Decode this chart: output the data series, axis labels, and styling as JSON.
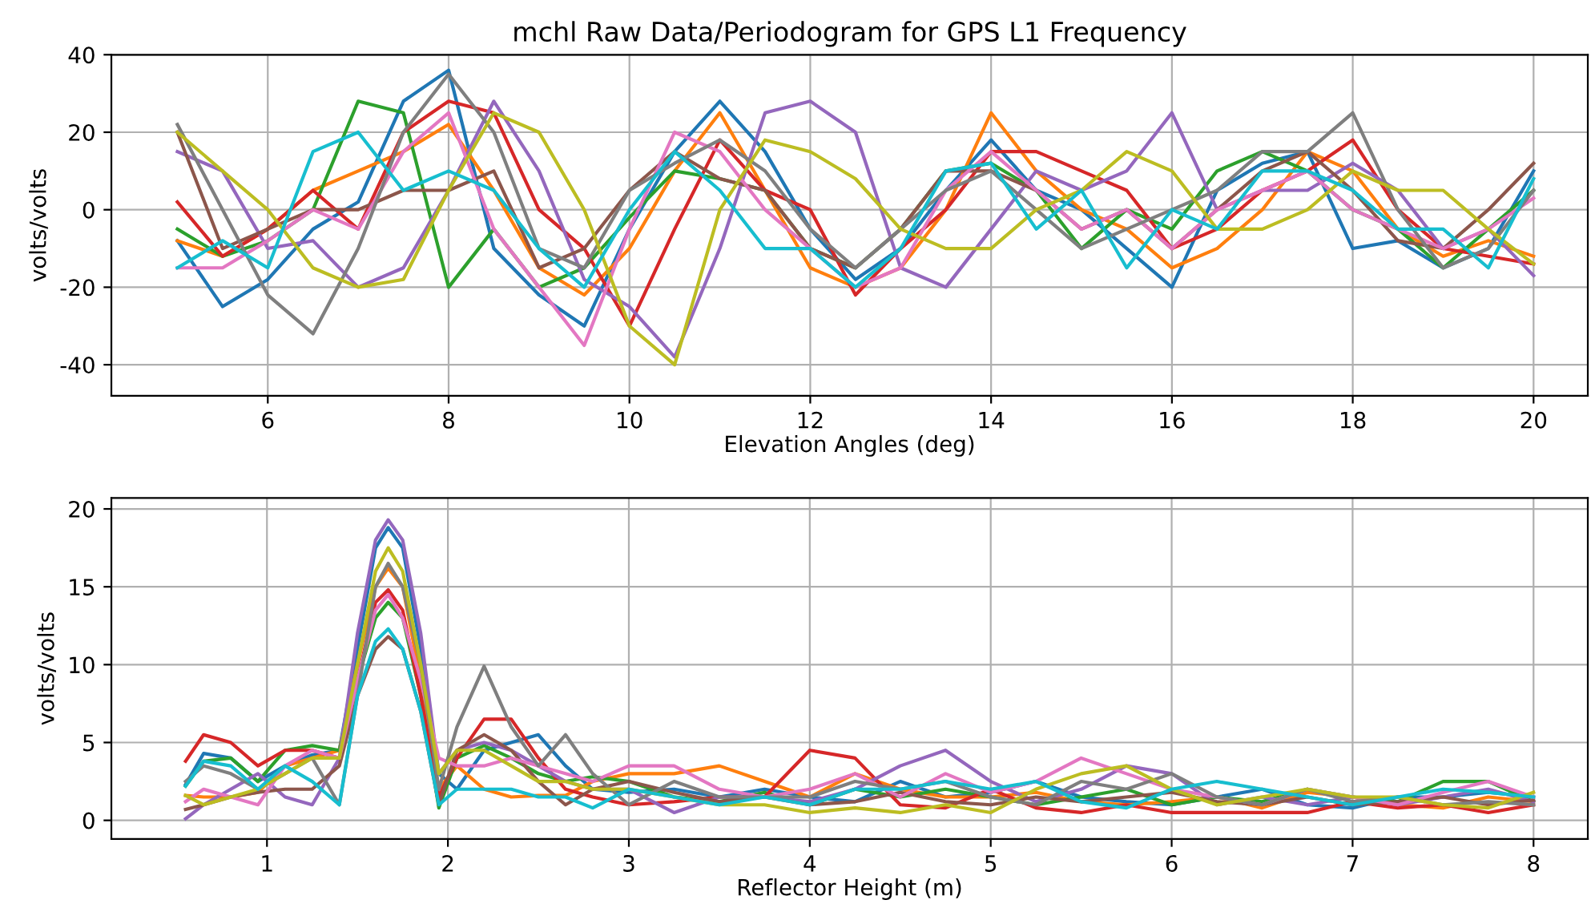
{
  "chart_data": [
    {
      "type": "line",
      "title": "mchl Raw Data/Periodogram for GPS L1 Frequency",
      "xlabel": "Elevation Angles (deg)",
      "ylabel": "volts/volts",
      "grid": true,
      "x": [
        5,
        5.5,
        6,
        6.5,
        7,
        7.5,
        8,
        8.5,
        9,
        9.5,
        10,
        10.5,
        11,
        11.5,
        12,
        12.5,
        13,
        13.5,
        14,
        14.5,
        15,
        15.5,
        16,
        16.5,
        17,
        17.5,
        18,
        18.5,
        19,
        19.5,
        20
      ],
      "xlim": [
        4.27,
        20.6
      ],
      "xticks": [
        6,
        8,
        10,
        12,
        14,
        16,
        18,
        20
      ],
      "ylim": [
        -48,
        40
      ],
      "yticks": [
        -40,
        -20,
        0,
        20,
        40
      ],
      "series": [
        {
          "color": "#1f77b4",
          "values": [
            -8,
            -25,
            -18,
            -5,
            2,
            28,
            36,
            -10,
            -22,
            -30,
            -5,
            15,
            28,
            15,
            -5,
            -18,
            -10,
            5,
            18,
            5,
            0,
            -10,
            -20,
            5,
            12,
            15,
            -10,
            -8,
            -15,
            -10,
            10
          ]
        },
        {
          "color": "#ff7f0e",
          "values": [
            -8,
            -12,
            -5,
            5,
            10,
            15,
            22,
            5,
            -15,
            -22,
            -10,
            10,
            25,
            5,
            -15,
            -20,
            -15,
            0,
            25,
            10,
            0,
            -5,
            -15,
            -10,
            0,
            15,
            10,
            -5,
            -12,
            -8,
            -12
          ]
        },
        {
          "color": "#2ca02c",
          "values": [
            -5,
            -12,
            -8,
            0,
            28,
            25,
            -20,
            -5,
            -20,
            -15,
            -2,
            10,
            8,
            5,
            -10,
            -15,
            -5,
            10,
            12,
            5,
            -10,
            0,
            -5,
            10,
            15,
            10,
            0,
            -5,
            -15,
            -5,
            5
          ]
        },
        {
          "color": "#d62728",
          "values": [
            2,
            -12,
            -5,
            5,
            -5,
            20,
            28,
            25,
            0,
            -10,
            -30,
            -5,
            18,
            5,
            0,
            -22,
            -10,
            0,
            15,
            15,
            10,
            5,
            -10,
            -5,
            5,
            10,
            18,
            0,
            -10,
            -12,
            -14
          ]
        },
        {
          "color": "#9467bd",
          "values": [
            15,
            10,
            -10,
            -8,
            -20,
            -15,
            5,
            28,
            10,
            -18,
            -25,
            -38,
            -10,
            25,
            28,
            20,
            -15,
            -20,
            -5,
            10,
            5,
            10,
            25,
            0,
            5,
            5,
            12,
            5,
            -10,
            -5,
            -17
          ]
        },
        {
          "color": "#8c564b",
          "values": [
            20,
            -10,
            -5,
            0,
            0,
            5,
            5,
            10,
            -15,
            -10,
            5,
            15,
            8,
            5,
            -10,
            -15,
            -5,
            10,
            10,
            5,
            -5,
            0,
            -10,
            0,
            10,
            15,
            5,
            -8,
            -10,
            0,
            12
          ]
        },
        {
          "color": "#e377c2",
          "values": [
            -15,
            -15,
            -8,
            0,
            -5,
            15,
            25,
            -5,
            -20,
            -35,
            -5,
            20,
            15,
            0,
            -10,
            -20,
            -15,
            5,
            15,
            5,
            -5,
            0,
            -10,
            0,
            5,
            10,
            0,
            -5,
            -10,
            -5,
            3
          ]
        },
        {
          "color": "#7f7f7f",
          "values": [
            22,
            0,
            -22,
            -32,
            -10,
            20,
            35,
            20,
            -10,
            -15,
            5,
            12,
            18,
            10,
            -5,
            -15,
            -5,
            5,
            10,
            0,
            -10,
            -5,
            0,
            5,
            15,
            15,
            25,
            0,
            -15,
            -10,
            5
          ]
        },
        {
          "color": "#bcbd22",
          "values": [
            20,
            10,
            0,
            -15,
            -20,
            -18,
            5,
            25,
            20,
            0,
            -30,
            -40,
            0,
            18,
            15,
            8,
            -5,
            -10,
            -10,
            0,
            5,
            15,
            10,
            -5,
            -5,
            0,
            10,
            5,
            5,
            -5,
            -14
          ]
        },
        {
          "color": "#17becf",
          "values": [
            -15,
            -8,
            -15,
            15,
            20,
            5,
            10,
            5,
            -10,
            -20,
            0,
            15,
            5,
            -10,
            -10,
            -20,
            -10,
            10,
            12,
            -5,
            5,
            -15,
            0,
            -5,
            10,
            10,
            5,
            -5,
            -5,
            -15,
            8
          ]
        }
      ]
    },
    {
      "type": "line",
      "xlabel": "Reflector Height (m)",
      "ylabel": "volts/volts",
      "grid": true,
      "x": [
        0.55,
        0.65,
        0.8,
        0.95,
        1.1,
        1.25,
        1.4,
        1.5,
        1.6,
        1.67,
        1.75,
        1.85,
        1.95,
        2.05,
        2.2,
        2.35,
        2.5,
        2.65,
        2.8,
        3.0,
        3.25,
        3.5,
        3.75,
        4.0,
        4.25,
        4.5,
        4.75,
        5.0,
        5.25,
        5.5,
        5.75,
        6.0,
        6.25,
        6.5,
        6.75,
        7.0,
        7.25,
        7.5,
        7.75,
        8.0
      ],
      "xlim": [
        0.14,
        8.3
      ],
      "xticks": [
        1,
        2,
        3,
        4,
        5,
        6,
        7,
        8
      ],
      "ylim": [
        -1.2,
        20.7
      ],
      "yticks": [
        0,
        5,
        10,
        15,
        20
      ],
      "series": [
        {
          "color": "#1f77b4",
          "values": [
            2.3,
            4.3,
            4.0,
            2.5,
            3.5,
            4.2,
            4.5,
            11,
            17.5,
            18.8,
            17.5,
            11,
            3,
            2,
            4.5,
            5.0,
            5.5,
            3.5,
            2,
            1.8,
            2.0,
            1.5,
            2.0,
            1.5,
            1.2,
            2.5,
            1.5,
            1.8,
            2.5,
            1.5,
            1.2,
            1.0,
            1.5,
            2.0,
            1.0,
            0.8,
            1.5,
            1.5,
            1.8,
            1.5
          ]
        },
        {
          "color": "#ff7f0e",
          "values": [
            1.6,
            1.5,
            1.5,
            1.8,
            3.5,
            4.0,
            4.5,
            10,
            15,
            16.2,
            15,
            9,
            2,
            3.5,
            2.0,
            1.5,
            1.6,
            1.6,
            2.5,
            3.0,
            3.0,
            3.5,
            2.5,
            1.5,
            3.0,
            2.0,
            1.5,
            1.5,
            1.8,
            1.2,
            1.0,
            1.2,
            1.5,
            0.8,
            1.8,
            1.5,
            1.0,
            0.8,
            1.5,
            1.2
          ]
        },
        {
          "color": "#2ca02c",
          "values": [
            2.2,
            3.8,
            4.0,
            2.5,
            4.5,
            4.8,
            4.5,
            9,
            13,
            14,
            13,
            8,
            0.8,
            4.0,
            4.8,
            4.0,
            3.0,
            2.5,
            2.8,
            2.5,
            1.5,
            1.2,
            1.8,
            1.0,
            2.0,
            1.5,
            2.0,
            1.5,
            1.0,
            1.5,
            2.0,
            1.0,
            1.5,
            1.2,
            2.0,
            1.5,
            1.2,
            2.5,
            2.5,
            1.2
          ]
        },
        {
          "color": "#d62728",
          "values": [
            3.8,
            5.5,
            5.0,
            3.5,
            4.5,
            4.5,
            4.0,
            9,
            14,
            14.8,
            13.5,
            8,
            1.5,
            4.0,
            6.5,
            6.5,
            4.0,
            2.0,
            1.5,
            1.0,
            1.2,
            1.5,
            1.5,
            4.5,
            4.0,
            1.0,
            0.8,
            2.0,
            0.8,
            0.5,
            1.0,
            0.5,
            0.5,
            0.5,
            0.5,
            1.2,
            0.8,
            1.0,
            0.5,
            1.0
          ]
        },
        {
          "color": "#9467bd",
          "values": [
            0.1,
            1.0,
            2.0,
            3.0,
            1.5,
            1.0,
            4.0,
            12,
            18,
            19.3,
            18,
            12,
            3,
            4.5,
            5.0,
            4.5,
            3.5,
            2.5,
            2.0,
            2.0,
            0.5,
            1.5,
            1.5,
            1.2,
            2.0,
            3.5,
            4.5,
            2.5,
            1.2,
            2.0,
            3.5,
            3.0,
            1.0,
            1.5,
            1.0,
            1.5,
            1.0,
            1.5,
            2.0,
            1.2
          ]
        },
        {
          "color": "#8c564b",
          "values": [
            0.7,
            1.0,
            1.5,
            1.8,
            2.0,
            2.0,
            3.5,
            8,
            11,
            11.8,
            11,
            7,
            1.0,
            4.5,
            5.5,
            4.5,
            2.5,
            1.0,
            2.0,
            2.5,
            1.8,
            1.2,
            1.5,
            1.0,
            1.2,
            1.8,
            1.2,
            1.0,
            1.5,
            1.2,
            1.5,
            1.8,
            1.2,
            1.0,
            1.5,
            1.0,
            1.2,
            1.5,
            1.0,
            1.3
          ]
        },
        {
          "color": "#e377c2",
          "values": [
            1.2,
            2.0,
            1.5,
            1.0,
            3.5,
            4.5,
            4.0,
            9,
            13.5,
            14.5,
            13,
            9,
            4,
            3.5,
            3.5,
            4.0,
            3.5,
            3.0,
            2.5,
            3.5,
            3.5,
            2.0,
            1.5,
            2.0,
            3.0,
            1.5,
            3.0,
            1.8,
            2.5,
            4.0,
            3.0,
            2.0,
            1.5,
            1.0,
            2.0,
            1.5,
            1.0,
            1.8,
            2.5,
            1.5
          ]
        },
        {
          "color": "#7f7f7f",
          "values": [
            2.5,
            3.5,
            3.0,
            2.0,
            3.0,
            4.0,
            1.0,
            8,
            15,
            16.5,
            15,
            10,
            2,
            6.0,
            9.9,
            6.0,
            3.5,
            5.5,
            3.0,
            1.0,
            2.5,
            1.5,
            1.5,
            1.5,
            2.5,
            2.0,
            2.5,
            1.5,
            1.0,
            2.5,
            2.0,
            3.0,
            1.5,
            1.0,
            2.0,
            1.2,
            1.5,
            1.0,
            1.2,
            1.0
          ]
        },
        {
          "color": "#bcbd22",
          "values": [
            1.6,
            1.0,
            1.5,
            2.0,
            3.0,
            4.0,
            4.0,
            10,
            16,
            17.5,
            16,
            10,
            3,
            4.5,
            4.5,
            3.5,
            2.5,
            2.5,
            2.0,
            2.0,
            1.5,
            1.0,
            1.0,
            0.5,
            0.8,
            0.5,
            1.0,
            0.5,
            2.0,
            3.0,
            3.5,
            2.0,
            1.0,
            1.5,
            2.0,
            1.5,
            1.5,
            1.0,
            0.8,
            1.8
          ]
        },
        {
          "color": "#17becf",
          "values": [
            2.2,
            3.8,
            3.5,
            2.0,
            3.5,
            2.5,
            1.0,
            8,
            11.5,
            12.3,
            11,
            7,
            1.0,
            2.0,
            2.0,
            2.0,
            1.5,
            1.5,
            0.8,
            2.0,
            1.5,
            1.0,
            1.5,
            1.0,
            2.0,
            2.0,
            2.5,
            2.0,
            2.5,
            1.2,
            0.8,
            2.0,
            2.5,
            2.0,
            1.5,
            1.0,
            1.5,
            2.0,
            1.8,
            1.5
          ]
        }
      ]
    }
  ]
}
